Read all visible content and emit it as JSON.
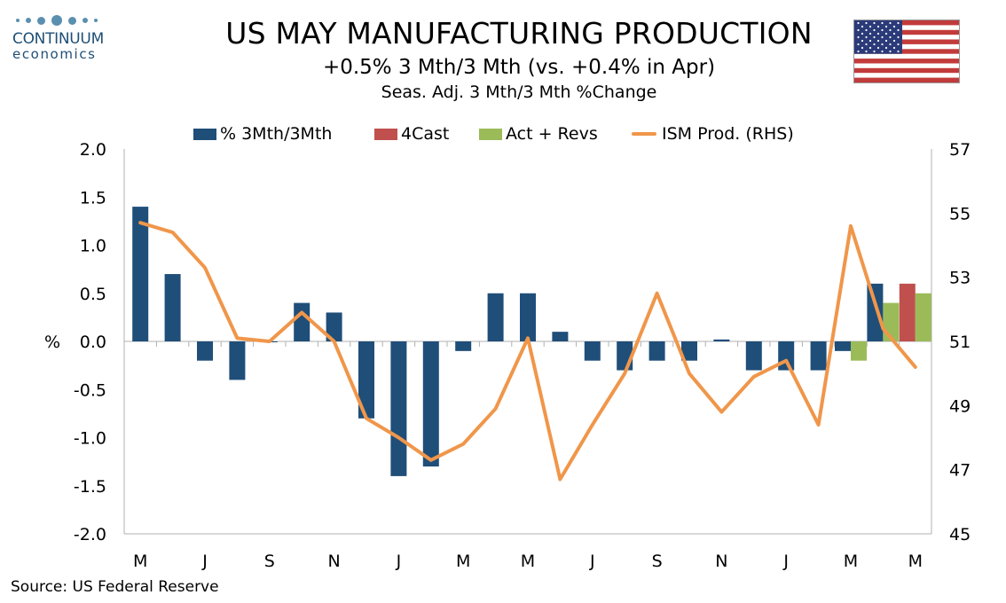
{
  "header": {
    "logo_name": "CONTINUUM",
    "logo_sub": "economics",
    "title": "US MAY MANUFACTURING PRODUCTION",
    "subtitle": "+0.5% 3 Mth/3 Mth (vs. +0.4% in Apr)",
    "subtitle2": "Seas. Adj. 3 Mth/3 Mth %Change",
    "flag_icon": "us-flag-icon"
  },
  "legend": [
    "% 3Mth/3Mth",
    "4Cast",
    "Act + Revs",
    "ISM Prod. (RHS)"
  ],
  "source": "Source: US Federal Reserve",
  "colors": {
    "bar": "#1f4e79",
    "forecast": "#c0504d",
    "actual": "#9bbb59",
    "line": "#f0964a",
    "axis": "#b0b0b0"
  },
  "chart_data": {
    "type": "bar",
    "ylabel": "%",
    "ylim": [
      -2.0,
      2.0
    ],
    "yticks": [
      "2.0",
      "1.5",
      "1.0",
      "0.5",
      "0.0",
      "-0.5",
      "-1.0",
      "-1.5",
      "-2.0"
    ],
    "y2lim": [
      45,
      57
    ],
    "y2ticks": [
      "57",
      "55",
      "53",
      "51",
      "49",
      "47",
      "45"
    ],
    "xtick_labels": [
      "M",
      "J",
      "S",
      "N",
      "J",
      "M",
      "M",
      "J",
      "S",
      "N",
      "J",
      "M",
      "M"
    ],
    "xtick_positions": [
      0,
      2,
      4,
      6,
      8,
      10,
      12,
      14,
      16,
      18,
      20,
      22,
      24
    ],
    "series": [
      {
        "name": "% 3Mth/3Mth",
        "values": [
          1.4,
          0.7,
          -0.2,
          -0.4,
          0.0,
          0.4,
          0.3,
          -0.8,
          -1.4,
          -1.3,
          -0.1,
          0.5,
          0.5,
          0.1,
          -0.2,
          -0.3,
          -0.2,
          -0.2,
          0.02,
          -0.3,
          -0.3,
          -0.3,
          -0.1,
          0.6,
          null
        ]
      },
      {
        "name": "4Cast",
        "values": [
          null,
          null,
          null,
          null,
          null,
          null,
          null,
          null,
          null,
          null,
          null,
          null,
          null,
          null,
          null,
          null,
          null,
          null,
          null,
          null,
          null,
          null,
          null,
          null,
          0.6
        ]
      },
      {
        "name": "Act + Revs",
        "values": [
          null,
          null,
          null,
          null,
          null,
          null,
          null,
          null,
          null,
          null,
          null,
          null,
          null,
          null,
          null,
          null,
          null,
          null,
          null,
          null,
          null,
          null,
          -0.2,
          0.4,
          0.5
        ]
      },
      {
        "name": "ISM Prod. (RHS)",
        "axis": "right",
        "values": [
          54.7,
          54.4,
          53.3,
          51.1,
          51.0,
          51.9,
          51.0,
          48.6,
          48.0,
          47.3,
          47.8,
          48.9,
          51.1,
          46.7,
          48.4,
          50.0,
          52.5,
          50.0,
          48.8,
          49.9,
          50.4,
          48.4,
          54.6,
          51.4,
          50.2
        ]
      }
    ]
  }
}
